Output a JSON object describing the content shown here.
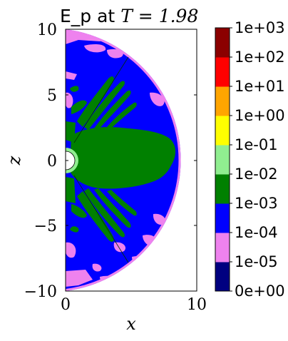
{
  "chart_data": {
    "type": "heatmap",
    "title": "E_p at T = 1.98",
    "title_text": "E_p at ",
    "title_math": "T = 1.98",
    "xlabel": "x",
    "ylabel": "z",
    "xlim": [
      0,
      10
    ],
    "ylim": [
      -10,
      10
    ],
    "x_ticks": [
      "0",
      "10"
    ],
    "y_ticks": [
      "10",
      "5",
      "0",
      "−5",
      "−10"
    ],
    "x_tick_values": [
      0,
      10
    ],
    "y_tick_values": [
      10,
      5,
      0,
      -5,
      -10
    ],
    "colorbar": {
      "levels": [
        "0e+00",
        "1e-05",
        "1e-04",
        "1e-03",
        "1e-02",
        "1e-01",
        "1e+00",
        "1e+01",
        "1e+02",
        "1e+03"
      ],
      "colors": [
        "#000080",
        "#ee82ee",
        "#0000ff",
        "#008000",
        "#90ee90",
        "#ffff00",
        "#ffa500",
        "#ff0000",
        "#8b0000"
      ]
    },
    "inner_boundary_radius": 1.0,
    "outer_boundary_radius": 10.0
  }
}
